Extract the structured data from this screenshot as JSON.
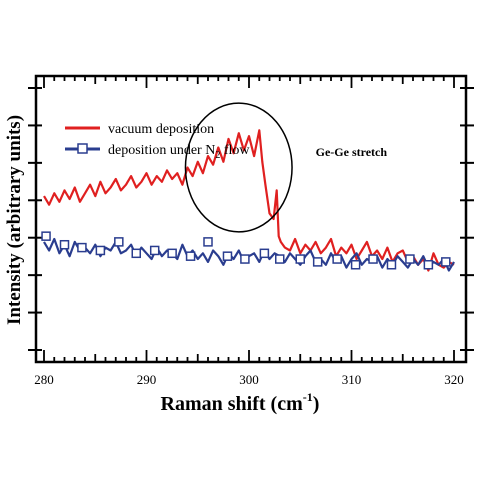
{
  "chart_data": {
    "type": "line",
    "xlabel": "Raman shift (cm",
    "xlabel_sup": "-1",
    "xlabel_end": ")",
    "ylabel": "Intensity (arbitrary units)",
    "xlim": [
      280,
      320
    ],
    "ylim": [
      0,
      10
    ],
    "x_ticks": [
      280,
      290,
      300,
      310,
      320
    ],
    "grid": false,
    "legend_position": "top-left",
    "series": [
      {
        "name": "vacuum deposition",
        "color": "#e02020",
        "marker": "none",
        "x": [
          280.0,
          280.5,
          281.0,
          281.5,
          282.0,
          282.5,
          283.0,
          283.5,
          284.0,
          284.5,
          285.0,
          285.5,
          286.0,
          286.5,
          287.0,
          287.5,
          288.0,
          288.5,
          289.0,
          289.5,
          290.0,
          290.5,
          291.0,
          291.5,
          292.0,
          292.5,
          293.0,
          293.5,
          294.0,
          294.5,
          295.0,
          295.5,
          296.0,
          296.5,
          297.0,
          297.5,
          298.0,
          298.5,
          299.0,
          299.5,
          300.0,
          300.5,
          301.0,
          301.3,
          301.6,
          302.0,
          302.4,
          302.7,
          302.9,
          303.1,
          303.5,
          304.0,
          304.5,
          305.0,
          305.5,
          306.0,
          306.5,
          307.0,
          307.5,
          308.0,
          308.5,
          309.0,
          309.5,
          310.0,
          310.5,
          311.0,
          311.5,
          312.0,
          312.5,
          313.0,
          313.5,
          314.0,
          314.5,
          315.0,
          315.5,
          316.0,
          316.5,
          317.0,
          317.5,
          318.0,
          318.5,
          319.0,
          319.5,
          320.0
        ],
        "y": [
          5.8,
          5.5,
          5.9,
          5.6,
          6.0,
          5.7,
          6.1,
          5.6,
          5.9,
          6.2,
          5.8,
          6.3,
          5.9,
          6.1,
          6.4,
          6.0,
          6.2,
          6.5,
          6.1,
          6.3,
          6.6,
          6.2,
          6.5,
          6.3,
          6.7,
          6.4,
          6.6,
          6.2,
          6.8,
          6.5,
          7.0,
          6.6,
          7.2,
          6.9,
          7.5,
          7.0,
          7.8,
          7.3,
          8.0,
          7.4,
          7.9,
          7.2,
          8.1,
          7.0,
          6.2,
          5.2,
          5.0,
          6.0,
          4.4,
          4.2,
          4.0,
          3.9,
          4.3,
          3.8,
          4.1,
          3.9,
          4.2,
          3.8,
          4.0,
          4.3,
          3.7,
          4.0,
          3.8,
          4.1,
          3.6,
          3.9,
          4.2,
          3.7,
          3.9,
          3.6,
          4.0,
          3.5,
          3.8,
          3.9,
          3.5,
          3.7,
          3.4,
          3.6,
          3.2,
          3.8,
          3.4,
          3.3,
          3.5,
          3.4
        ]
      },
      {
        "name": "deposition under N",
        "name_sub": "2",
        "name_end": " flow",
        "color": "#2a3d8f",
        "marker": "open-square",
        "x": [
          280.0,
          280.5,
          281.0,
          281.5,
          282.0,
          282.5,
          283.0,
          283.5,
          284.0,
          284.5,
          285.0,
          285.5,
          286.0,
          286.5,
          287.0,
          287.5,
          288.0,
          288.5,
          289.0,
          289.5,
          290.0,
          290.5,
          291.0,
          291.5,
          292.0,
          292.5,
          293.0,
          293.5,
          294.0,
          294.5,
          295.0,
          295.5,
          296.0,
          296.5,
          297.0,
          297.5,
          298.0,
          298.5,
          299.0,
          299.5,
          300.0,
          300.5,
          301.0,
          301.5,
          302.0,
          302.5,
          303.0,
          303.5,
          304.0,
          304.5,
          305.0,
          305.5,
          306.0,
          306.5,
          307.0,
          307.5,
          308.0,
          308.5,
          309.0,
          309.5,
          310.0,
          310.5,
          311.0,
          311.5,
          312.0,
          312.5,
          313.0,
          313.5,
          314.0,
          314.5,
          315.0,
          315.5,
          316.0,
          316.5,
          317.0,
          317.5,
          318.0,
          318.5,
          319.0,
          319.5,
          320.0
        ],
        "y": [
          4.2,
          3.9,
          4.3,
          3.8,
          4.1,
          3.7,
          4.2,
          3.9,
          4.0,
          3.8,
          4.1,
          3.7,
          4.0,
          3.9,
          4.2,
          3.8,
          3.9,
          4.1,
          3.7,
          4.0,
          3.8,
          3.6,
          4.0,
          3.7,
          3.9,
          3.8,
          3.6,
          4.1,
          3.7,
          3.9,
          3.6,
          3.8,
          3.5,
          3.9,
          3.7,
          3.4,
          3.8,
          3.6,
          3.9,
          3.5,
          3.7,
          3.8,
          3.5,
          3.9,
          3.6,
          3.8,
          3.7,
          3.5,
          3.8,
          3.6,
          3.4,
          3.7,
          3.9,
          3.5,
          3.6,
          3.4,
          3.8,
          3.5,
          3.7,
          3.3,
          3.6,
          3.8,
          3.4,
          3.6,
          3.5,
          3.7,
          3.3,
          3.6,
          3.4,
          3.7,
          3.5,
          3.3,
          3.6,
          3.4,
          3.7,
          3.3,
          3.5,
          3.4,
          3.6,
          3.2,
          3.5
        ],
        "marker_x": [
          280.2,
          282.0,
          283.7,
          285.5,
          287.3,
          289.0,
          290.8,
          292.5,
          294.3,
          296.0,
          297.9,
          299.6,
          301.5,
          303.0,
          305.0,
          306.7,
          308.6,
          310.4,
          312.1,
          313.9,
          315.7,
          317.5,
          319.2
        ],
        "marker_y": [
          4.4,
          4.1,
          4.0,
          3.9,
          4.2,
          3.8,
          3.9,
          3.8,
          3.7,
          4.2,
          3.7,
          3.6,
          3.8,
          3.6,
          3.6,
          3.5,
          3.6,
          3.4,
          3.6,
          3.4,
          3.6,
          3.4,
          3.5
        ]
      }
    ],
    "annotations": [
      {
        "type": "text",
        "text": "Ge-Ge stretch",
        "x": 306.5,
        "y": 7.2
      },
      {
        "type": "circle",
        "cx": 299.0,
        "cy": 6.8,
        "rx": 5.2,
        "ry": 2.25
      }
    ]
  }
}
